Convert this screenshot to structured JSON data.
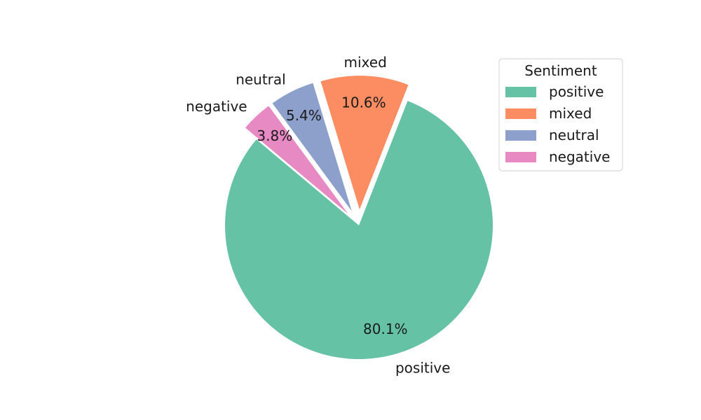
{
  "chart_data": {
    "type": "pie",
    "title": "",
    "start_angle_deg": 140,
    "direction": "counterclockwise",
    "slices": [
      {
        "label": "positive",
        "value": 80.1,
        "pct_label": "80.1%",
        "color": "#66c2a5",
        "explode": 0.0
      },
      {
        "label": "mixed",
        "value": 10.6,
        "pct_label": "10.6%",
        "color": "#fc8d62",
        "explode": 0.12
      },
      {
        "label": "neutral",
        "value": 5.4,
        "pct_label": "5.4%",
        "color": "#8da0cb",
        "explode": 0.12
      },
      {
        "label": "negative",
        "value": 3.8,
        "pct_label": "3.8%",
        "color": "#e78ac3",
        "explode": 0.12
      }
    ],
    "legend": {
      "title": "Sentiment",
      "placement": "top-right",
      "entries": [
        "positive",
        "mixed",
        "neutral",
        "negative"
      ]
    }
  }
}
